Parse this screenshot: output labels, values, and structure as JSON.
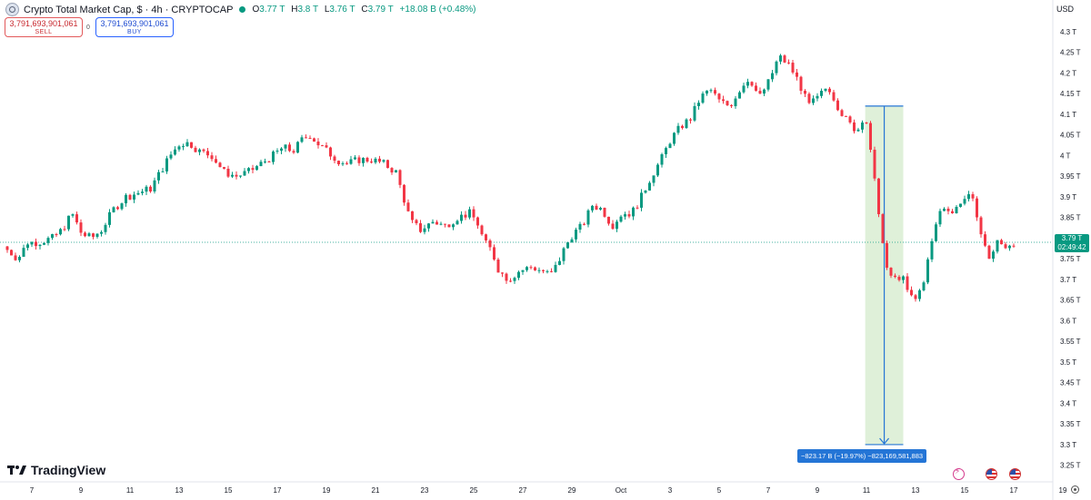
{
  "header": {
    "title": "Crypto Total Market Cap, $ · 4h · CRYPTOCAP",
    "ohlc": [
      {
        "label": "O",
        "value": "3.77 T"
      },
      {
        "label": "H",
        "value": "3.8 T"
      },
      {
        "label": "L",
        "value": "3.76 T"
      },
      {
        "label": "C",
        "value": "3.79 T"
      }
    ],
    "change": "+18.08 B (+0.48%)"
  },
  "trade": {
    "sell_price": "3,791,693,901,061",
    "sell_label": "SELL",
    "spread": "0",
    "buy_price": "3,791,693,901,061",
    "buy_label": "BUY"
  },
  "currency": "USD",
  "brand": "TradingView",
  "price_tag": {
    "price": "3.79 T",
    "countdown": "02:49:42"
  },
  "measure_label": "−823.17 B (−19.97%) −823,169,581,883",
  "colors": {
    "up": "#089981",
    "down": "#f23645",
    "measure": "#2475d6"
  },
  "icons": [
    "flash-icon",
    "us-flag-icon",
    "us-flag-icon",
    "gear-icon"
  ],
  "chart_data": {
    "type": "candlestick",
    "units": "T USD",
    "ylim": [
      3.23,
      4.33
    ],
    "y_ticks": [
      3.25,
      3.3,
      3.35,
      3.4,
      3.45,
      3.5,
      3.55,
      3.6,
      3.65,
      3.7,
      3.75,
      3.8,
      3.85,
      3.9,
      3.95,
      4.0,
      4.05,
      4.1,
      4.15,
      4.2,
      4.25,
      4.3
    ],
    "y_tick_labels": [
      "3.25 T",
      "3.3 T",
      "3.35 T",
      "3.4 T",
      "3.45 T",
      "3.5 T",
      "3.55 T",
      "3.6 T",
      "3.65 T",
      "3.7 T",
      "3.75 T",
      "3.8 T",
      "3.85 T",
      "3.9 T",
      "3.95 T",
      "4 T",
      "4.05 T",
      "4.1 T",
      "4.15 T",
      "4.2 T",
      "4.25 T",
      "4.3 T"
    ],
    "x_ticks": [
      {
        "label": "7",
        "day": 7
      },
      {
        "label": "9",
        "day": 9
      },
      {
        "label": "11",
        "day": 11
      },
      {
        "label": "13",
        "day": 13
      },
      {
        "label": "15",
        "day": 15
      },
      {
        "label": "17",
        "day": 17
      },
      {
        "label": "19",
        "day": 19
      },
      {
        "label": "21",
        "day": 21
      },
      {
        "label": "23",
        "day": 23
      },
      {
        "label": "25",
        "day": 25
      },
      {
        "label": "27",
        "day": 27
      },
      {
        "label": "29",
        "day": 29
      },
      {
        "label": "Oct",
        "day": 31
      },
      {
        "label": "3",
        "day": 33
      },
      {
        "label": "5",
        "day": 35
      },
      {
        "label": "7",
        "day": 37
      },
      {
        "label": "9",
        "day": 39
      },
      {
        "label": "11",
        "day": 41
      },
      {
        "label": "13",
        "day": 43
      },
      {
        "label": "15",
        "day": 45
      },
      {
        "label": "17",
        "day": 47
      },
      {
        "label": "19",
        "day": 49
      }
    ],
    "anchors": [
      [
        6.0,
        3.78
      ],
      [
        6.6,
        3.75
      ],
      [
        7.0,
        3.79
      ],
      [
        7.4,
        3.79
      ],
      [
        8.0,
        3.8
      ],
      [
        8.4,
        3.82
      ],
      [
        8.8,
        3.86
      ],
      [
        9.2,
        3.81
      ],
      [
        9.6,
        3.8
      ],
      [
        10.0,
        3.82
      ],
      [
        10.5,
        3.87
      ],
      [
        11.0,
        3.9
      ],
      [
        11.5,
        3.91
      ],
      [
        12.0,
        3.92
      ],
      [
        12.4,
        3.96
      ],
      [
        12.8,
        4.0
      ],
      [
        13.2,
        4.03
      ],
      [
        13.6,
        4.03
      ],
      [
        14.0,
        4.01
      ],
      [
        14.5,
        4.0
      ],
      [
        15.0,
        3.96
      ],
      [
        15.5,
        3.95
      ],
      [
        16.0,
        3.96
      ],
      [
        16.5,
        3.98
      ],
      [
        17.0,
        4.0
      ],
      [
        17.4,
        4.02
      ],
      [
        17.8,
        4.01
      ],
      [
        18.2,
        4.04
      ],
      [
        18.5,
        4.05
      ],
      [
        18.8,
        4.03
      ],
      [
        19.2,
        4.01
      ],
      [
        19.6,
        3.99
      ],
      [
        20.0,
        3.98
      ],
      [
        20.5,
        3.99
      ],
      [
        21.0,
        3.99
      ],
      [
        21.5,
        3.98
      ],
      [
        22.0,
        3.96
      ],
      [
        22.3,
        3.9
      ],
      [
        22.6,
        3.84
      ],
      [
        23.0,
        3.82
      ],
      [
        23.5,
        3.84
      ],
      [
        24.0,
        3.83
      ],
      [
        24.5,
        3.85
      ],
      [
        25.0,
        3.86
      ],
      [
        25.3,
        3.84
      ],
      [
        25.6,
        3.79
      ],
      [
        25.9,
        3.77
      ],
      [
        26.2,
        3.72
      ],
      [
        26.6,
        3.7
      ],
      [
        27.0,
        3.72
      ],
      [
        27.5,
        3.73
      ],
      [
        28.0,
        3.72
      ],
      [
        28.3,
        3.71
      ],
      [
        28.6,
        3.74
      ],
      [
        28.9,
        3.78
      ],
      [
        29.2,
        3.81
      ],
      [
        29.6,
        3.83
      ],
      [
        30.0,
        3.88
      ],
      [
        30.4,
        3.87
      ],
      [
        30.8,
        3.83
      ],
      [
        31.2,
        3.86
      ],
      [
        31.6,
        3.86
      ],
      [
        32.0,
        3.9
      ],
      [
        32.4,
        3.95
      ],
      [
        32.8,
        3.99
      ],
      [
        33.2,
        4.04
      ],
      [
        33.6,
        4.07
      ],
      [
        34.0,
        4.09
      ],
      [
        34.4,
        4.14
      ],
      [
        34.8,
        4.16
      ],
      [
        35.2,
        4.13
      ],
      [
        35.6,
        4.12
      ],
      [
        36.0,
        4.16
      ],
      [
        36.4,
        4.19
      ],
      [
        36.8,
        4.14
      ],
      [
        37.2,
        4.18
      ],
      [
        37.6,
        4.24
      ],
      [
        38.0,
        4.22
      ],
      [
        38.4,
        4.18
      ],
      [
        38.8,
        4.12
      ],
      [
        39.2,
        4.14
      ],
      [
        39.6,
        4.17
      ],
      [
        40.0,
        4.12
      ],
      [
        40.4,
        4.08
      ],
      [
        40.8,
        4.06
      ],
      [
        41.0,
        4.09
      ],
      [
        41.2,
        4.08
      ],
      [
        41.4,
        3.97
      ],
      [
        41.6,
        3.9
      ],
      [
        41.8,
        3.8
      ],
      [
        42.0,
        3.72
      ],
      [
        42.3,
        3.7
      ],
      [
        42.6,
        3.71
      ],
      [
        42.9,
        3.66
      ],
      [
        43.2,
        3.65
      ],
      [
        43.5,
        3.7
      ],
      [
        43.8,
        3.78
      ],
      [
        44.1,
        3.86
      ],
      [
        44.4,
        3.88
      ],
      [
        44.7,
        3.86
      ],
      [
        45.0,
        3.89
      ],
      [
        45.3,
        3.9
      ],
      [
        45.6,
        3.88
      ],
      [
        45.9,
        3.79
      ],
      [
        46.2,
        3.75
      ],
      [
        46.5,
        3.79
      ],
      [
        46.8,
        3.78
      ],
      [
        47.1,
        3.79
      ]
    ],
    "last_close": 3.79,
    "measurement": {
      "from_value": 4.12,
      "to_value": 3.3,
      "change": "−823.17 B",
      "change_pct": "−19.97%",
      "change_abs": "−823,169,581,883"
    }
  }
}
